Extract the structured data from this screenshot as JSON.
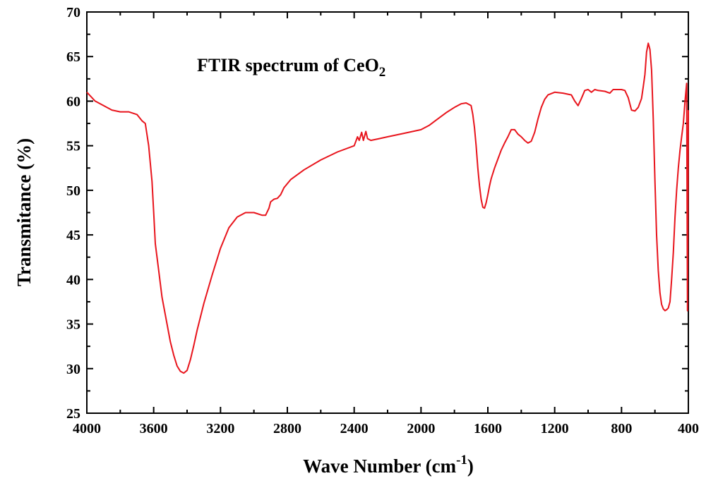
{
  "chart_data": {
    "type": "line",
    "title": "FTIR spectrum of CeO",
    "title_subscript": "2",
    "xlabel": "Wave Number (cm",
    "xlabel_superscript": "-1",
    "xlabel_suffix": ")",
    "ylabel": "Transmitance (%)",
    "xlim": [
      4000,
      400
    ],
    "ylim": [
      25,
      70
    ],
    "x_reversed": true,
    "grid": false,
    "line_color": "#e8141c",
    "x_ticks": [
      4000,
      3600,
      3200,
      2800,
      2400,
      2000,
      1600,
      1200,
      800,
      400
    ],
    "x_tick_labels": [
      "4000",
      "3600",
      "3200",
      "2800",
      "2400",
      "2000",
      "1600",
      "1200",
      "800",
      "400"
    ],
    "y_ticks": [
      25,
      30,
      35,
      40,
      45,
      50,
      55,
      60,
      65,
      70
    ],
    "y_tick_labels": [
      "25",
      "30",
      "35",
      "40",
      "45",
      "50",
      "55",
      "60",
      "65",
      "70"
    ],
    "series": [
      {
        "x": [
          4000,
          3950,
          3900,
          3850,
          3800,
          3750,
          3700,
          3670,
          3650,
          3630,
          3610,
          3600,
          3590,
          3570,
          3550,
          3520,
          3500,
          3480,
          3460,
          3440,
          3420,
          3400,
          3380,
          3360,
          3340,
          3300,
          3250,
          3200,
          3150,
          3100,
          3050,
          3000,
          2950,
          2930,
          2910,
          2900,
          2880,
          2860,
          2840,
          2820,
          2780,
          2700,
          2600,
          2500,
          2400,
          2380,
          2370,
          2355,
          2345,
          2330,
          2320,
          2300,
          2250,
          2200,
          2100,
          2000,
          1950,
          1900,
          1850,
          1800,
          1760,
          1730,
          1710,
          1700,
          1690,
          1680,
          1670,
          1660,
          1650,
          1640,
          1630,
          1620,
          1610,
          1600,
          1590,
          1580,
          1560,
          1540,
          1520,
          1500,
          1480,
          1460,
          1440,
          1420,
          1400,
          1380,
          1360,
          1340,
          1320,
          1300,
          1280,
          1260,
          1240,
          1200,
          1150,
          1100,
          1080,
          1060,
          1040,
          1020,
          1000,
          980,
          960,
          940,
          900,
          870,
          850,
          820,
          800,
          780,
          760,
          740,
          720,
          700,
          680,
          670,
          660,
          650,
          640,
          630,
          620,
          610,
          600,
          590,
          580,
          570,
          560,
          550,
          540,
          530,
          520,
          510,
          500,
          490,
          480,
          470,
          460,
          450,
          440,
          430,
          420,
          410,
          405,
          400
        ],
        "y": [
          61.0,
          60.0,
          59.5,
          59.0,
          58.8,
          58.8,
          58.5,
          57.8,
          57.5,
          55.0,
          51.0,
          47.5,
          44.0,
          41.0,
          38.0,
          35.0,
          33.0,
          31.5,
          30.3,
          29.7,
          29.5,
          29.8,
          31.0,
          32.6,
          34.3,
          37.3,
          40.5,
          43.5,
          45.8,
          47.0,
          47.5,
          47.5,
          47.2,
          47.2,
          48.0,
          48.7,
          49.0,
          49.1,
          49.5,
          50.3,
          51.2,
          52.3,
          53.4,
          54.3,
          55.0,
          56.0,
          55.6,
          56.5,
          55.6,
          56.6,
          55.8,
          55.6,
          55.8,
          56.0,
          56.4,
          56.8,
          57.3,
          58.0,
          58.7,
          59.3,
          59.7,
          59.8,
          59.6,
          59.5,
          58.5,
          57.0,
          55.0,
          52.5,
          50.5,
          49.0,
          48.1,
          48.0,
          48.6,
          49.5,
          50.5,
          51.3,
          52.5,
          53.5,
          54.5,
          55.3,
          56.0,
          56.8,
          56.8,
          56.3,
          56.0,
          55.6,
          55.3,
          55.5,
          56.5,
          58.0,
          59.3,
          60.2,
          60.7,
          61.0,
          60.9,
          60.7,
          60.0,
          59.5,
          60.3,
          61.2,
          61.3,
          61.0,
          61.3,
          61.2,
          61.1,
          60.9,
          61.3,
          61.3,
          61.3,
          61.2,
          60.4,
          59.0,
          58.9,
          59.3,
          60.3,
          61.6,
          63.0,
          65.5,
          66.5,
          65.8,
          63.5,
          58.0,
          51.0,
          45.0,
          41.0,
          38.5,
          37.2,
          36.7,
          36.5,
          36.6,
          36.8,
          37.5,
          40.0,
          43.0,
          47.0,
          50.0,
          52.5,
          54.5,
          56.0,
          57.5,
          60.0,
          62.0,
          36.5,
          59.0
        ]
      }
    ]
  }
}
